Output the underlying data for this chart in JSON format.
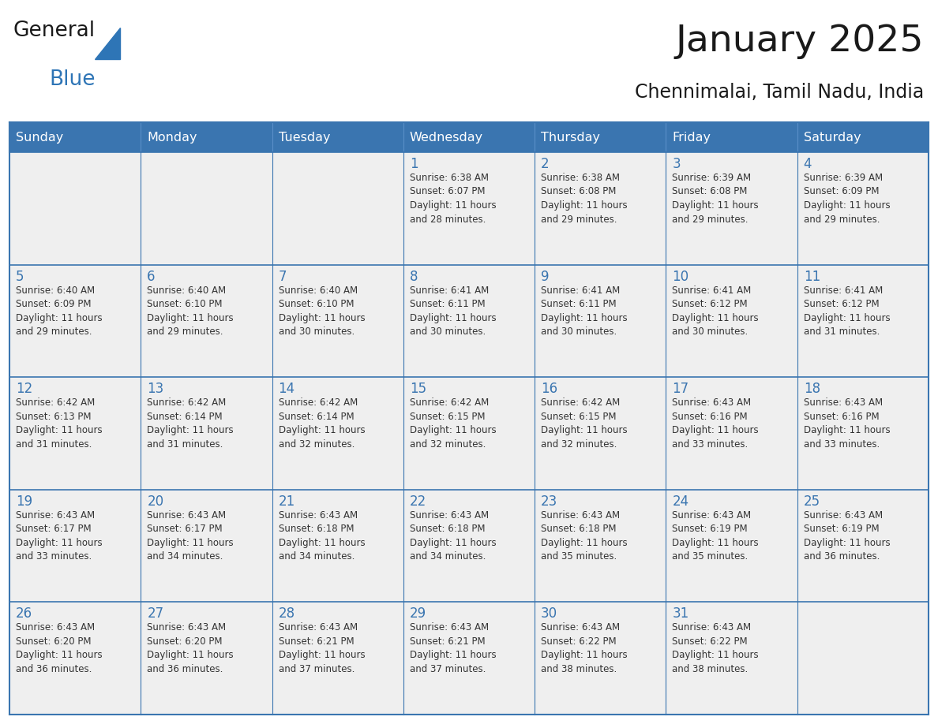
{
  "title": "January 2025",
  "subtitle": "Chennimalai, Tamil Nadu, India",
  "header_color": "#3A75B0",
  "header_text_color": "#FFFFFF",
  "cell_bg_color": "#FFFFFF",
  "cell_alt_bg_color": "#EFEFEF",
  "border_color": "#3A75B0",
  "day_number_color": "#3A75B0",
  "text_color": "#333333",
  "days_of_week": [
    "Sunday",
    "Monday",
    "Tuesday",
    "Wednesday",
    "Thursday",
    "Friday",
    "Saturday"
  ],
  "calendar_data": [
    [
      {
        "day": "",
        "info": ""
      },
      {
        "day": "",
        "info": ""
      },
      {
        "day": "",
        "info": ""
      },
      {
        "day": "1",
        "info": "Sunrise: 6:38 AM\nSunset: 6:07 PM\nDaylight: 11 hours\nand 28 minutes."
      },
      {
        "day": "2",
        "info": "Sunrise: 6:38 AM\nSunset: 6:08 PM\nDaylight: 11 hours\nand 29 minutes."
      },
      {
        "day": "3",
        "info": "Sunrise: 6:39 AM\nSunset: 6:08 PM\nDaylight: 11 hours\nand 29 minutes."
      },
      {
        "day": "4",
        "info": "Sunrise: 6:39 AM\nSunset: 6:09 PM\nDaylight: 11 hours\nand 29 minutes."
      }
    ],
    [
      {
        "day": "5",
        "info": "Sunrise: 6:40 AM\nSunset: 6:09 PM\nDaylight: 11 hours\nand 29 minutes."
      },
      {
        "day": "6",
        "info": "Sunrise: 6:40 AM\nSunset: 6:10 PM\nDaylight: 11 hours\nand 29 minutes."
      },
      {
        "day": "7",
        "info": "Sunrise: 6:40 AM\nSunset: 6:10 PM\nDaylight: 11 hours\nand 30 minutes."
      },
      {
        "day": "8",
        "info": "Sunrise: 6:41 AM\nSunset: 6:11 PM\nDaylight: 11 hours\nand 30 minutes."
      },
      {
        "day": "9",
        "info": "Sunrise: 6:41 AM\nSunset: 6:11 PM\nDaylight: 11 hours\nand 30 minutes."
      },
      {
        "day": "10",
        "info": "Sunrise: 6:41 AM\nSunset: 6:12 PM\nDaylight: 11 hours\nand 30 minutes."
      },
      {
        "day": "11",
        "info": "Sunrise: 6:41 AM\nSunset: 6:12 PM\nDaylight: 11 hours\nand 31 minutes."
      }
    ],
    [
      {
        "day": "12",
        "info": "Sunrise: 6:42 AM\nSunset: 6:13 PM\nDaylight: 11 hours\nand 31 minutes."
      },
      {
        "day": "13",
        "info": "Sunrise: 6:42 AM\nSunset: 6:14 PM\nDaylight: 11 hours\nand 31 minutes."
      },
      {
        "day": "14",
        "info": "Sunrise: 6:42 AM\nSunset: 6:14 PM\nDaylight: 11 hours\nand 32 minutes."
      },
      {
        "day": "15",
        "info": "Sunrise: 6:42 AM\nSunset: 6:15 PM\nDaylight: 11 hours\nand 32 minutes."
      },
      {
        "day": "16",
        "info": "Sunrise: 6:42 AM\nSunset: 6:15 PM\nDaylight: 11 hours\nand 32 minutes."
      },
      {
        "day": "17",
        "info": "Sunrise: 6:43 AM\nSunset: 6:16 PM\nDaylight: 11 hours\nand 33 minutes."
      },
      {
        "day": "18",
        "info": "Sunrise: 6:43 AM\nSunset: 6:16 PM\nDaylight: 11 hours\nand 33 minutes."
      }
    ],
    [
      {
        "day": "19",
        "info": "Sunrise: 6:43 AM\nSunset: 6:17 PM\nDaylight: 11 hours\nand 33 minutes."
      },
      {
        "day": "20",
        "info": "Sunrise: 6:43 AM\nSunset: 6:17 PM\nDaylight: 11 hours\nand 34 minutes."
      },
      {
        "day": "21",
        "info": "Sunrise: 6:43 AM\nSunset: 6:18 PM\nDaylight: 11 hours\nand 34 minutes."
      },
      {
        "day": "22",
        "info": "Sunrise: 6:43 AM\nSunset: 6:18 PM\nDaylight: 11 hours\nand 34 minutes."
      },
      {
        "day": "23",
        "info": "Sunrise: 6:43 AM\nSunset: 6:18 PM\nDaylight: 11 hours\nand 35 minutes."
      },
      {
        "day": "24",
        "info": "Sunrise: 6:43 AM\nSunset: 6:19 PM\nDaylight: 11 hours\nand 35 minutes."
      },
      {
        "day": "25",
        "info": "Sunrise: 6:43 AM\nSunset: 6:19 PM\nDaylight: 11 hours\nand 36 minutes."
      }
    ],
    [
      {
        "day": "26",
        "info": "Sunrise: 6:43 AM\nSunset: 6:20 PM\nDaylight: 11 hours\nand 36 minutes."
      },
      {
        "day": "27",
        "info": "Sunrise: 6:43 AM\nSunset: 6:20 PM\nDaylight: 11 hours\nand 36 minutes."
      },
      {
        "day": "28",
        "info": "Sunrise: 6:43 AM\nSunset: 6:21 PM\nDaylight: 11 hours\nand 37 minutes."
      },
      {
        "day": "29",
        "info": "Sunrise: 6:43 AM\nSunset: 6:21 PM\nDaylight: 11 hours\nand 37 minutes."
      },
      {
        "day": "30",
        "info": "Sunrise: 6:43 AM\nSunset: 6:22 PM\nDaylight: 11 hours\nand 38 minutes."
      },
      {
        "day": "31",
        "info": "Sunrise: 6:43 AM\nSunset: 6:22 PM\nDaylight: 11 hours\nand 38 minutes."
      },
      {
        "day": "",
        "info": ""
      }
    ]
  ],
  "logo_general_color": "#1A1A1A",
  "logo_blue_color": "#2E75B6",
  "figsize": [
    11.88,
    9.18
  ],
  "dpi": 100
}
